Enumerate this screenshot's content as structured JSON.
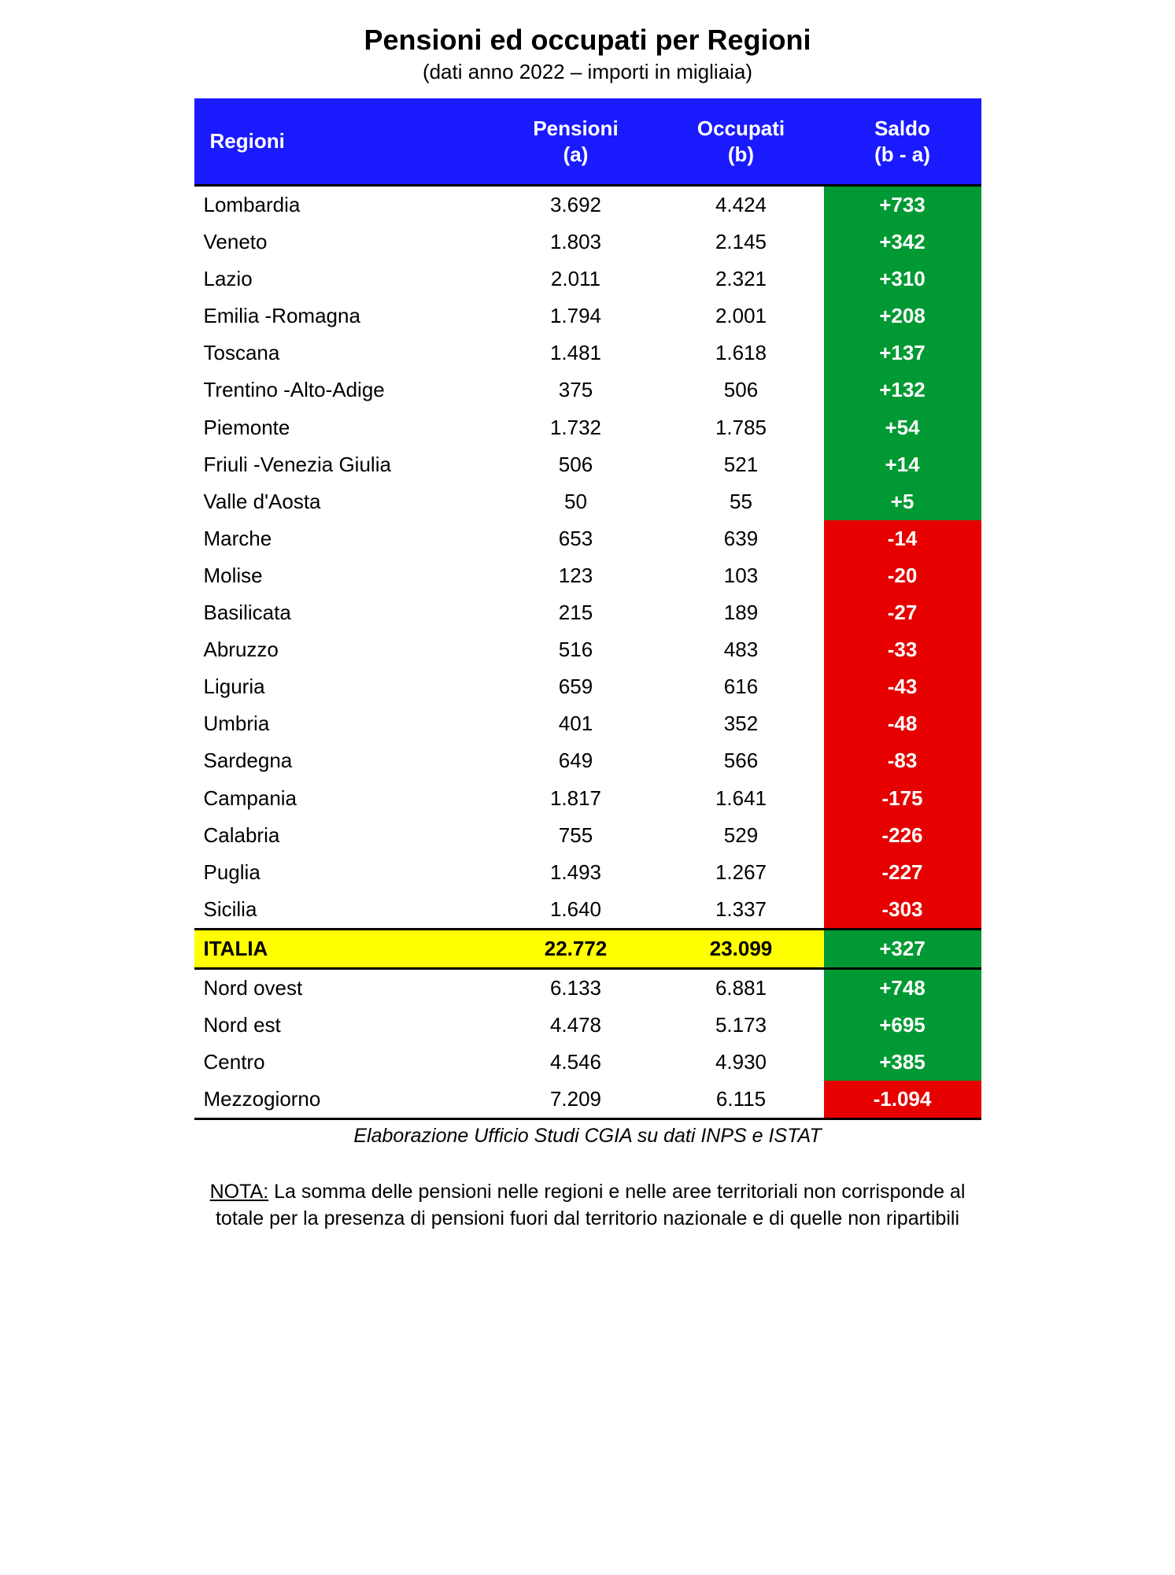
{
  "header": {
    "title": "Pensioni ed occupati per Regioni",
    "subtitle": "(dati anno 2022 – importi in migliaia)"
  },
  "table": {
    "columns": {
      "regioni": "Regioni",
      "pensioni_line1": "Pensioni",
      "pensioni_line2": "(a)",
      "occupati_line1": "Occupati",
      "occupati_line2": "(b)",
      "saldo_line1": "Saldo",
      "saldo_line2": "(b - a)"
    },
    "colors": {
      "header_bg": "#1a1aff",
      "header_text": "#ffffff",
      "positive_bg": "#009933",
      "negative_bg": "#e60000",
      "italia_bg": "#ffff00",
      "border": "#000000"
    },
    "regions": [
      {
        "name": "Lombardia",
        "pensioni": "3.692",
        "occupati": "4.424",
        "saldo": "+733",
        "positive": true
      },
      {
        "name": "Veneto",
        "pensioni": "1.803",
        "occupati": "2.145",
        "saldo": "+342",
        "positive": true
      },
      {
        "name": "Lazio",
        "pensioni": "2.011",
        "occupati": "2.321",
        "saldo": "+310",
        "positive": true
      },
      {
        "name": "Emilia -Romagna",
        "pensioni": "1.794",
        "occupati": "2.001",
        "saldo": "+208",
        "positive": true
      },
      {
        "name": "Toscana",
        "pensioni": "1.481",
        "occupati": "1.618",
        "saldo": "+137",
        "positive": true
      },
      {
        "name": "Trentino -Alto-Adige",
        "pensioni": "375",
        "occupati": "506",
        "saldo": "+132",
        "positive": true
      },
      {
        "name": "Piemonte",
        "pensioni": "1.732",
        "occupati": "1.785",
        "saldo": "+54",
        "positive": true
      },
      {
        "name": "Friuli -Venezia Giulia",
        "pensioni": "506",
        "occupati": "521",
        "saldo": "+14",
        "positive": true
      },
      {
        "name": "Valle d'Aosta",
        "pensioni": "50",
        "occupati": "55",
        "saldo": "+5",
        "positive": true
      },
      {
        "name": "Marche",
        "pensioni": "653",
        "occupati": "639",
        "saldo": "-14",
        "positive": false
      },
      {
        "name": "Molise",
        "pensioni": "123",
        "occupati": "103",
        "saldo": "-20",
        "positive": false
      },
      {
        "name": "Basilicata",
        "pensioni": "215",
        "occupati": "189",
        "saldo": "-27",
        "positive": false
      },
      {
        "name": "Abruzzo",
        "pensioni": "516",
        "occupati": "483",
        "saldo": "-33",
        "positive": false
      },
      {
        "name": "Liguria",
        "pensioni": "659",
        "occupati": "616",
        "saldo": "-43",
        "positive": false
      },
      {
        "name": "Umbria",
        "pensioni": "401",
        "occupati": "352",
        "saldo": "-48",
        "positive": false
      },
      {
        "name": "Sardegna",
        "pensioni": "649",
        "occupati": "566",
        "saldo": "-83",
        "positive": false
      },
      {
        "name": "Campania",
        "pensioni": "1.817",
        "occupati": "1.641",
        "saldo": "-175",
        "positive": false
      },
      {
        "name": "Calabria",
        "pensioni": "755",
        "occupati": "529",
        "saldo": "-226",
        "positive": false
      },
      {
        "name": "Puglia",
        "pensioni": "1.493",
        "occupati": "1.267",
        "saldo": "-227",
        "positive": false
      },
      {
        "name": "Sicilia",
        "pensioni": "1.640",
        "occupati": "1.337",
        "saldo": "-303",
        "positive": false
      }
    ],
    "italia": {
      "name": "ITALIA",
      "pensioni": "22.772",
      "occupati": "23.099",
      "saldo": "+327",
      "positive": true
    },
    "macros": [
      {
        "name": "Nord ovest",
        "pensioni": "6.133",
        "occupati": "6.881",
        "saldo": "+748",
        "positive": true
      },
      {
        "name": "Nord est",
        "pensioni": "4.478",
        "occupati": "5.173",
        "saldo": "+695",
        "positive": true
      },
      {
        "name": "Centro",
        "pensioni": "4.546",
        "occupati": "4.930",
        "saldo": "+385",
        "positive": true
      },
      {
        "name": "Mezzogiorno",
        "pensioni": "7.209",
        "occupati": "6.115",
        "saldo": "-1.094",
        "positive": false
      }
    ]
  },
  "footer": {
    "source": "Elaborazione Ufficio Studi CGIA su dati INPS e ISTAT",
    "note_label": "NOTA:",
    "note_text": " La somma delle pensioni nelle regioni e nelle aree territoriali non corrisponde al totale per la presenza di pensioni fuori dal territorio nazionale e di quelle non ripartibili"
  }
}
